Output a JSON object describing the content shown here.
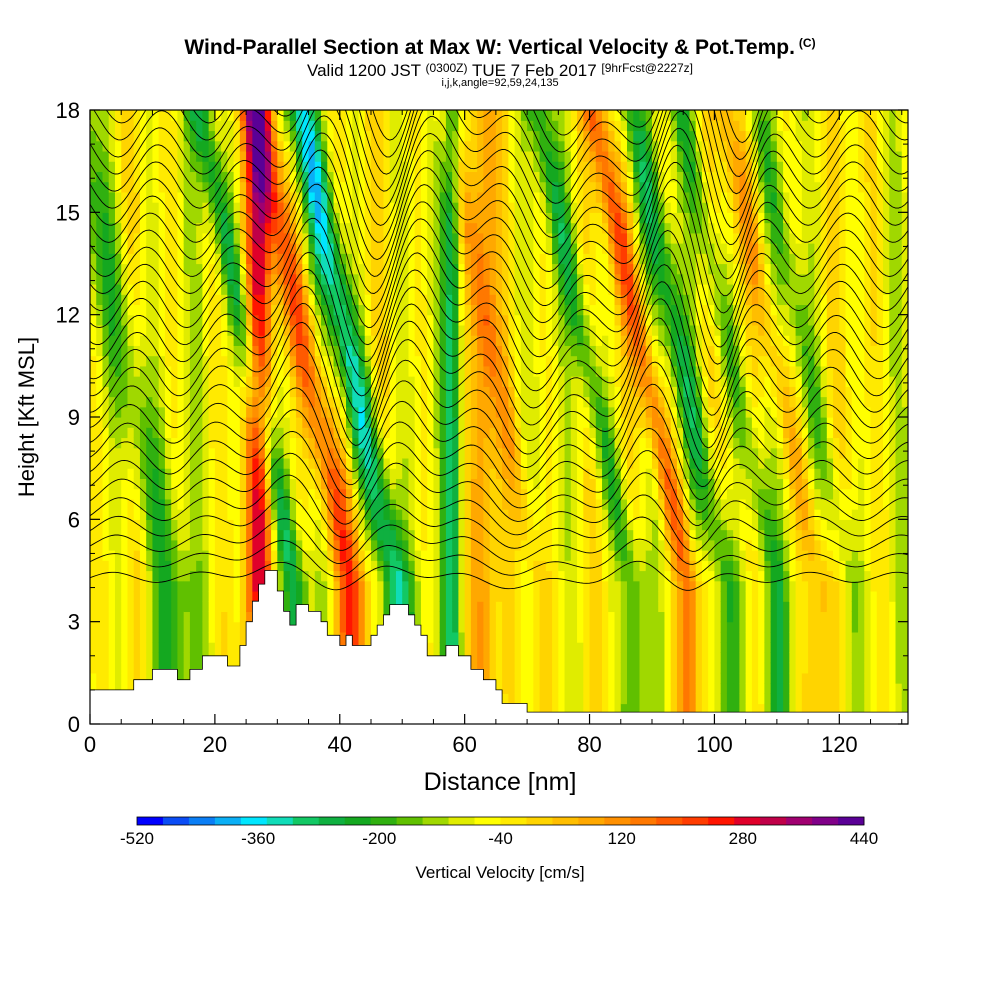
{
  "title": {
    "main": "Wind-Parallel Section at Max W: Vertical Velocity & Pot.Temp.",
    "copyright": "(C)",
    "valid_prefix": "Valid 1200 JST",
    "valid_utc": "(0300Z)",
    "valid_date": "TUE 7 Feb 2017",
    "forecast": "[9hrFcst@2227z]",
    "indices": "i,j,k,angle=92,59,24,135"
  },
  "chart_data": {
    "type": "heatmap",
    "xlabel": "Distance [nm]",
    "ylabel": "Height [Kft MSL]",
    "xlim": [
      0,
      131
    ],
    "ylim": [
      0,
      18
    ],
    "xticks": [
      "0",
      "20",
      "40",
      "60",
      "80",
      "100",
      "120"
    ],
    "yticks": [
      "0",
      "3",
      "6",
      "9",
      "12",
      "15",
      "18"
    ],
    "colorbar": {
      "label": "Vertical Velocity [cm/s]",
      "min": -520,
      "max": 440,
      "interval": 40,
      "tick_labels": [
        "-520",
        "-360",
        "-200",
        "-40",
        "120",
        "280",
        "440"
      ],
      "colors": [
        "#0000ff",
        "#0a4cf5",
        "#0a7ef5",
        "#0aaff5",
        "#00e6ff",
        "#10dcb8",
        "#12c864",
        "#0fb040",
        "#14a820",
        "#30b010",
        "#60c000",
        "#a0d800",
        "#e0ec00",
        "#ffff00",
        "#ffea00",
        "#ffd400",
        "#ffbe00",
        "#ffa800",
        "#ff9000",
        "#ff7800",
        "#ff5a00",
        "#ff3c00",
        "#ff1400",
        "#e0002a",
        "#c00048",
        "#a00070",
        "#800088",
        "#5a0096"
      ]
    },
    "terrain_kft": [
      [
        0,
        1.0
      ],
      [
        7,
        1.0
      ],
      [
        7,
        1.3
      ],
      [
        10,
        1.3
      ],
      [
        10,
        1.6
      ],
      [
        14,
        1.6
      ],
      [
        14,
        1.3
      ],
      [
        16,
        1.3
      ],
      [
        16,
        1.6
      ],
      [
        18,
        1.6
      ],
      [
        18,
        2.0
      ],
      [
        22,
        2.0
      ],
      [
        22,
        1.7
      ],
      [
        24,
        1.7
      ],
      [
        24,
        2.3
      ],
      [
        25,
        2.3
      ],
      [
        25,
        3.0
      ],
      [
        26,
        3.0
      ],
      [
        26,
        3.6
      ],
      [
        27,
        3.6
      ],
      [
        27,
        4.1
      ],
      [
        28,
        4.1
      ],
      [
        28,
        4.5
      ],
      [
        30,
        4.5
      ],
      [
        30,
        3.9
      ],
      [
        31,
        3.9
      ],
      [
        31,
        3.3
      ],
      [
        32,
        3.3
      ],
      [
        32,
        2.9
      ],
      [
        33,
        2.9
      ],
      [
        33,
        3.5
      ],
      [
        35,
        3.5
      ],
      [
        35,
        3.3
      ],
      [
        37,
        3.3
      ],
      [
        37,
        3.0
      ],
      [
        38,
        3.0
      ],
      [
        38,
        2.6
      ],
      [
        40,
        2.6
      ],
      [
        40,
        2.3
      ],
      [
        41,
        2.3
      ],
      [
        41,
        2.6
      ],
      [
        42,
        2.6
      ],
      [
        42,
        2.3
      ],
      [
        45,
        2.3
      ],
      [
        45,
        2.6
      ],
      [
        46,
        2.6
      ],
      [
        46,
        2.9
      ],
      [
        47,
        2.9
      ],
      [
        47,
        3.2
      ],
      [
        48,
        3.2
      ],
      [
        48,
        3.5
      ],
      [
        51,
        3.5
      ],
      [
        51,
        3.2
      ],
      [
        52,
        3.2
      ],
      [
        52,
        2.9
      ],
      [
        53,
        2.9
      ],
      [
        53,
        2.6
      ],
      [
        54,
        2.6
      ],
      [
        54,
        2.0
      ],
      [
        57,
        2.0
      ],
      [
        57,
        2.3
      ],
      [
        59,
        2.3
      ],
      [
        59,
        2.0
      ],
      [
        61,
        2.0
      ],
      [
        61,
        1.6
      ],
      [
        63,
        1.6
      ],
      [
        63,
        1.3
      ],
      [
        65,
        1.3
      ],
      [
        65,
        1.0
      ],
      [
        66,
        1.0
      ],
      [
        66,
        0.6
      ],
      [
        70,
        0.6
      ],
      [
        70,
        0.35
      ],
      [
        131,
        0.35
      ]
    ]
  }
}
